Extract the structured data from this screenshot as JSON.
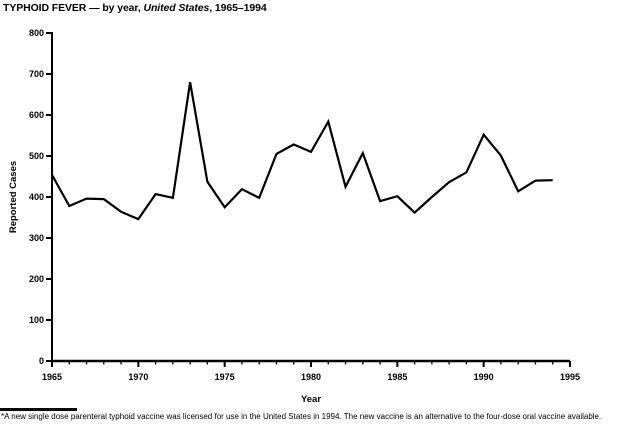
{
  "title": {
    "prefix": "TYPHOID FEVER — by year, ",
    "region": "United States",
    "suffix": ", 1965–1994"
  },
  "footnote": {
    "marker": "*",
    "text": "A new single dose parenteral typhoid vaccine was licensed for use in the United States in 1994. The new vaccine is an alternative to the four-dose oral vaccine available."
  },
  "chart_data": {
    "type": "line",
    "title": "TYPHOID FEVER — by year, United States, 1965–1994",
    "xlabel": "Year",
    "ylabel": "Reported Cases",
    "xlim": [
      1965,
      1995
    ],
    "ylim": [
      0,
      800
    ],
    "x_major_tick_step": 5,
    "x_minor_tick_step": 1,
    "y_tick_step": 100,
    "grid": false,
    "legend": false,
    "line_color": "#000000",
    "axis_color": "#000000",
    "background_color": "#ffffff",
    "x": [
      1965,
      1966,
      1967,
      1968,
      1969,
      1970,
      1971,
      1972,
      1973,
      1974,
      1975,
      1976,
      1977,
      1978,
      1979,
      1980,
      1981,
      1982,
      1983,
      1984,
      1985,
      1986,
      1987,
      1988,
      1989,
      1990,
      1991,
      1992,
      1993,
      1994
    ],
    "values": [
      454,
      378,
      396,
      395,
      364,
      346,
      407,
      398,
      680,
      437,
      375,
      419,
      398,
      505,
      528,
      510,
      584,
      425,
      507,
      390,
      402,
      362,
      400,
      436,
      460,
      552,
      501,
      414,
      440,
      441
    ]
  }
}
